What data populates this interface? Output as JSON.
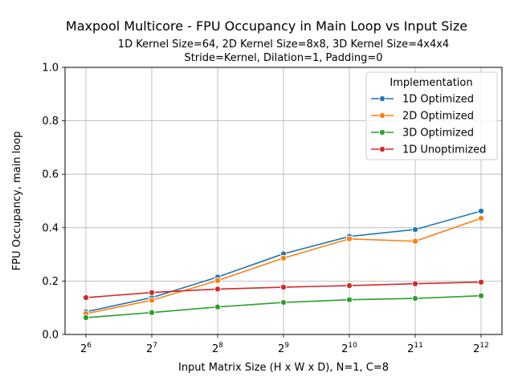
{
  "chart_data": {
    "type": "line",
    "title": "Maxpool Multicore - FPU Occupancy in Main Loop vs Input Size",
    "subtitle_lines": [
      "1D Kernel Size=64, 2D Kernel Size=8x8, 3D Kernel Size=4x4x4",
      "Stride=Kernel, Dilation=1, Padding=0"
    ],
    "xlabel": "Input Matrix Size (H x W x D), N=1, C=8",
    "ylabel": "FPU Occupancy, main loop",
    "x_scale": "log2",
    "x": [
      64,
      128,
      256,
      512,
      1024,
      2048,
      4096
    ],
    "x_tick_labels": [
      {
        "base": "2",
        "exp": "6"
      },
      {
        "base": "2",
        "exp": "7"
      },
      {
        "base": "2",
        "exp": "8"
      },
      {
        "base": "2",
        "exp": "9"
      },
      {
        "base": "2",
        "exp": "10"
      },
      {
        "base": "2",
        "exp": "11"
      },
      {
        "base": "2",
        "exp": "12"
      }
    ],
    "ylim": [
      0,
      1.0
    ],
    "y_ticks": [
      "0.0",
      "0.2",
      "0.4",
      "0.6",
      "0.8",
      "1.0"
    ],
    "grid": true,
    "legend": {
      "title": "Implementation",
      "placement": "top-right"
    },
    "series": [
      {
        "name": "1D Optimized",
        "color": "#1f77b4",
        "values": [
          0.085,
          0.138,
          0.215,
          0.302,
          0.367,
          0.393,
          0.462
        ]
      },
      {
        "name": "2D Optimized",
        "color": "#ff7f0e",
        "values": [
          0.078,
          0.128,
          0.202,
          0.286,
          0.358,
          0.349,
          0.435
        ]
      },
      {
        "name": "3D Optimized",
        "color": "#2ca02c",
        "values": [
          0.063,
          0.082,
          0.103,
          0.12,
          0.13,
          0.135,
          0.145
        ]
      },
      {
        "name": "1D Unoptimized",
        "color": "#d62728",
        "values": [
          0.138,
          0.157,
          0.17,
          0.177,
          0.183,
          0.19,
          0.196
        ]
      }
    ]
  }
}
